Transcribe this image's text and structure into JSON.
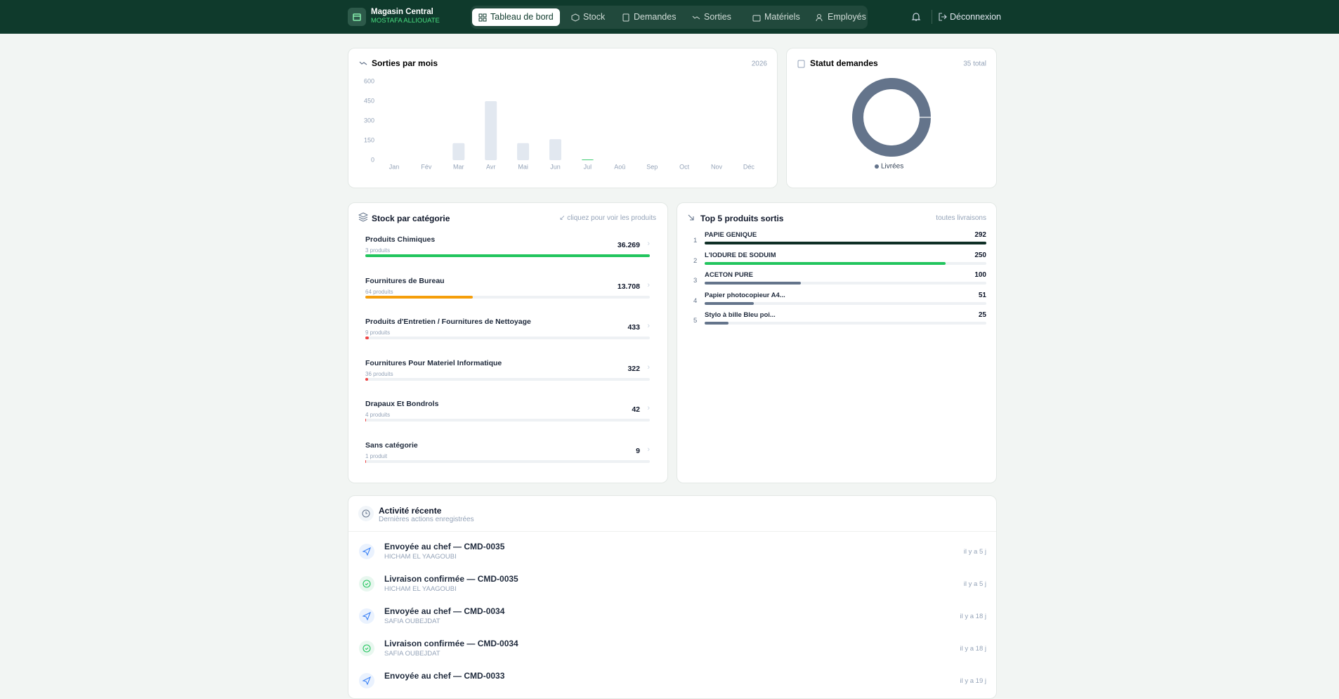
{
  "header": {
    "brand": "Magasin Central",
    "user": "MOSTAFA ALLIOUATE",
    "nav": [
      "Tableau de bord",
      "Stock",
      "Demandes",
      "Sorties",
      "Matériels",
      "Employés"
    ],
    "logout": "Déconnexion"
  },
  "chart_data": [
    {
      "type": "bar",
      "title": "Sorties par mois",
      "subtitle": "2026",
      "categories": [
        "Jan",
        "Fév",
        "Mar",
        "Avr",
        "Mai",
        "Jun",
        "Jul",
        "Aoû",
        "Sep",
        "Oct",
        "Nov",
        "Déc"
      ],
      "values": [
        0,
        0,
        130,
        450,
        130,
        160,
        5,
        0,
        0,
        0,
        0,
        0
      ],
      "colors": [
        "#e2e8f0",
        "#e2e8f0",
        "#e2e8f0",
        "#e2e8f0",
        "#e2e8f0",
        "#e2e8f0",
        "#22c55e",
        "#e2e8f0",
        "#e2e8f0",
        "#e2e8f0",
        "#e2e8f0",
        "#e2e8f0"
      ],
      "ylim": [
        0,
        600
      ],
      "yticks": [
        0,
        150,
        300,
        450,
        600
      ],
      "grid": false
    },
    {
      "type": "donut",
      "title": "Statut demandes",
      "total": {
        "value": 35,
        "label": "35 total"
      },
      "categories": [
        "Livrées"
      ],
      "values": [
        35
      ],
      "colors": [
        "#64748b"
      ]
    },
    {
      "type": "hbar",
      "title": "Stock par catégorie",
      "hint": "cliquez pour voir les produits",
      "categories": [
        "Produits Chimiques",
        "Fournitures de Bureau",
        "Produits d'Entretien / Fournitures de Nettoyage",
        "Fournitures Pour Materiel Informatique",
        "Drapaux Et Bondrols",
        "Sans catégorie"
      ],
      "counts": [
        "3 produits",
        "64 produits",
        "9 produits",
        "36 produits",
        "4 produits",
        "1 produit"
      ],
      "values": [
        36269,
        13708,
        433,
        322,
        42,
        9
      ],
      "value_labels": [
        "36.269",
        "13.708",
        "433",
        "322",
        "42",
        "9"
      ],
      "colors": [
        "#22c55e",
        "#f59e0b",
        "#ef4444",
        "#ef4444",
        "#ef4444",
        "#ef4444"
      ]
    },
    {
      "type": "rank",
      "title": "Top 5 produits sortis",
      "subtitle": "toutes livraisons",
      "ranks": [
        "1",
        "2",
        "3",
        "4",
        "5"
      ],
      "categories": [
        "PAPIE GENIQUE",
        "L'IODURE DE SODUIM",
        "ACETON PURE",
        "Papier photocopieur A4...",
        "Stylo à bille Bleu poi..."
      ],
      "values": [
        292,
        250,
        100,
        51,
        25
      ],
      "colors": [
        "#0f2f26",
        "#22c55e",
        "#64748b",
        "#64748b",
        "#64748b"
      ]
    }
  ],
  "activity": {
    "title": "Activité récente",
    "subtitle": "Dernières actions enregistrées",
    "items": [
      {
        "title": "Envoyée au chef — CMD-0035",
        "person": "HICHAM EL YAAGOUBI",
        "time": "il y a 5 j"
      },
      {
        "title": "Livraison confirmée — CMD-0035",
        "person": "HICHAM EL YAAGOUBI",
        "time": "il y a 5 j"
      },
      {
        "title": "Envoyée au chef — CMD-0034",
        "person": "SAFIA OUBEJDAT",
        "time": "il y a 18 j"
      },
      {
        "title": "Livraison confirmée — CMD-0034",
        "person": "SAFIA OUBEJDAT",
        "time": "il y a 18 j"
      },
      {
        "title": "Envoyée au chef — CMD-0033",
        "time": "il y a 19 j"
      }
    ]
  }
}
